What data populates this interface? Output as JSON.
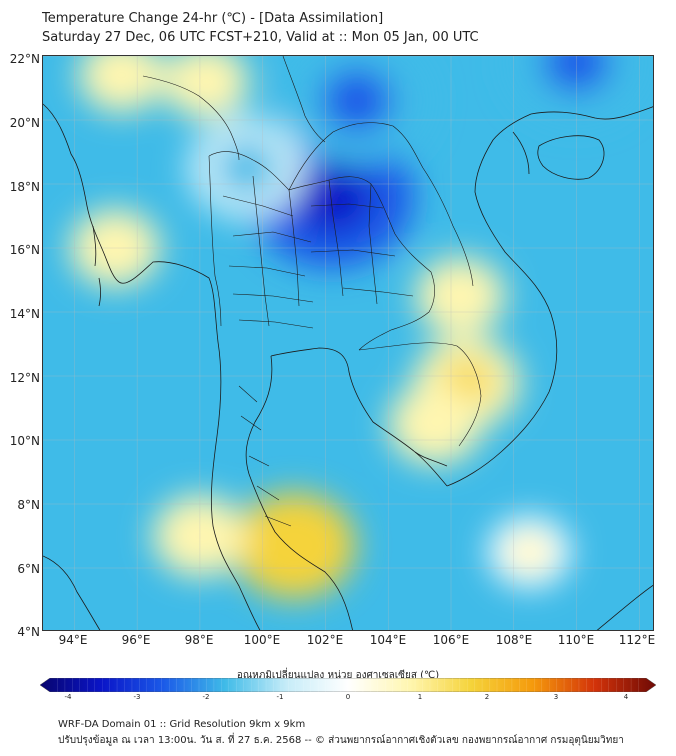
{
  "title": {
    "line1": "Temperature Change 24-hr (℃) - [Data Assimilation]",
    "line2": "Saturday 27 Dec, 06 UTC FCST+210, Valid at :: Mon 05 Jan, 00 UTC"
  },
  "map": {
    "region": "Thailand and mainland Southeast Asia",
    "lat_labels": [
      "22°N",
      "20°N",
      "18°N",
      "16°N",
      "14°N",
      "12°N",
      "10°N",
      "8°N",
      "6°N",
      "4°N"
    ],
    "lon_labels": [
      "94°E",
      "96°E",
      "98°E",
      "100°E",
      "102°E",
      "104°E",
      "106°E",
      "108°E",
      "110°E",
      "112°E"
    ],
    "lat_range": [
      4,
      22
    ],
    "lon_range": [
      93,
      112.5
    ],
    "background_color": "#3fbbe8",
    "anomalies": [
      {
        "name": "cold-core-laos",
        "lon": 102.2,
        "lat": 17.6,
        "value": -2.3
      },
      {
        "name": "cold-core-north-laos",
        "lon": 103.0,
        "lat": 20.6,
        "value": -1.9
      },
      {
        "name": "cold-north-thailand",
        "lon": 99.5,
        "lat": 18.5,
        "value": -1.2
      },
      {
        "name": "cold-gulf-of-tonkin",
        "lon": 110.0,
        "lat": 21.8,
        "value": -1.7
      },
      {
        "name": "warm-cambodia",
        "lon": 106.5,
        "lat": 11.8,
        "value": 0.9
      },
      {
        "name": "warm-south-vietnam",
        "lon": 105.5,
        "lat": 10.5,
        "value": 0.6
      },
      {
        "name": "warm-malay-peninsula",
        "lon": 101.0,
        "lat": 6.7,
        "value": 1.3
      },
      {
        "name": "warm-andaman",
        "lon": 98.0,
        "lat": 7.0,
        "value": 0.6
      },
      {
        "name": "warm-myanmar-coast",
        "lon": 95.3,
        "lat": 16.0,
        "value": 0.5
      },
      {
        "name": "warm-north-bay",
        "lon": 95.5,
        "lat": 21.4,
        "value": 0.4
      },
      {
        "name": "warm-north-myanmar",
        "lon": 98.2,
        "lat": 21.2,
        "value": 0.4
      },
      {
        "name": "warm-south-sea",
        "lon": 108.5,
        "lat": 6.5,
        "value": 0.3
      },
      {
        "name": "warm-east-vietnam",
        "lon": 106.3,
        "lat": 14.5,
        "value": 0.5
      }
    ]
  },
  "colorbar": {
    "title": "อุณหภูมิเปลี่ยนแปลง หน่วย องศาเซลเซียส (℃)",
    "min": -4,
    "max": 4,
    "ticks": [
      "-4",
      "-3",
      "-2",
      "-1",
      "0",
      "1",
      "2",
      "3",
      "4"
    ],
    "colors": [
      "#08056e",
      "#0a15c8",
      "#1b5ae8",
      "#3fbbe8",
      "#c6ecf8",
      "#ffffff",
      "#fff6b0",
      "#f5d33a",
      "#f59a0c",
      "#d3330a",
      "#6e0a05"
    ]
  },
  "footer": {
    "line1": "WRF-DA Domain 01 :: Grid Resolution 9km x 9km",
    "line2": "ปรับปรุงข้อมูล ณ เวลา 13:00น. วัน ส. ที่ 27 ธ.ค. 2568 -- © ส่วนพยากรณ์อากาศเชิงตัวเลข กองพยากรณ์อากาศ กรมอุตุนิยมวิทยา"
  }
}
